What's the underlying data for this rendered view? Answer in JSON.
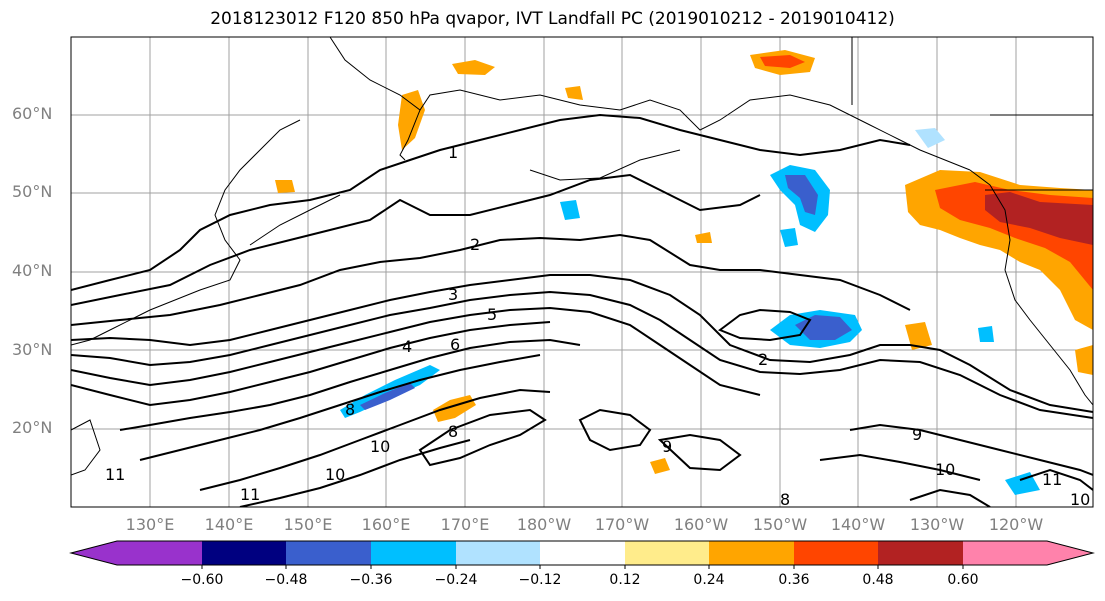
{
  "title": "2018123012 F120 850 hPa qvapor, IVT Landfall PC (2019010212 - 2019010412)",
  "lat_labels": [
    "60°N",
    "50°N",
    "40°N",
    "30°N",
    "20°N"
  ],
  "lon_labels": [
    "130°E",
    "140°E",
    "150°E",
    "160°E",
    "170°E",
    "180°W",
    "170°W",
    "160°W",
    "150°W",
    "140°W",
    "130°W",
    "120°W"
  ],
  "contour_labels": [
    "1",
    "2",
    "3",
    "4",
    "5",
    "6",
    "8",
    "10",
    "11",
    "2",
    "8",
    "9",
    "10",
    "11",
    "10",
    "8",
    "9",
    "10",
    "11"
  ],
  "colorbar": {
    "tick_labels": [
      "−0.60",
      "−0.48",
      "−0.36",
      "−0.24",
      "−0.12",
      "0.12",
      "0.24",
      "0.36",
      "0.48",
      "0.60"
    ],
    "colors": [
      "#9932cc",
      "#000080",
      "#3a5fcd",
      "#00bfff",
      "#b0e2ff",
      "#ffffff",
      "#ffec8b",
      "#ffa500",
      "#ff4500",
      "#b22222",
      "#ff82ab"
    ]
  }
}
